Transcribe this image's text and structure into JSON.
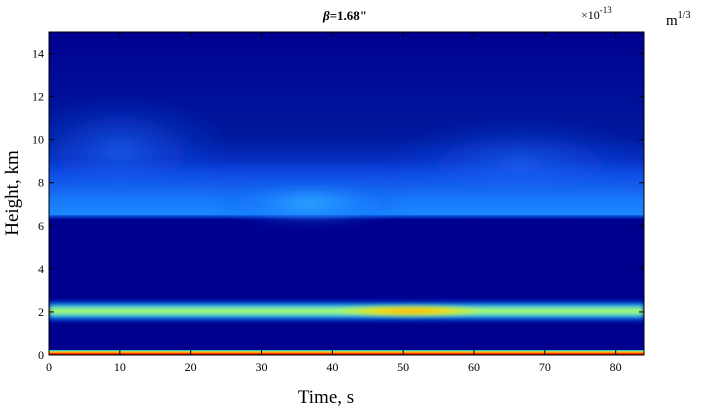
{
  "chart_data": {
    "type": "heatmap",
    "title": "β=1.68\"",
    "title_parts": {
      "symbol": "β",
      "rest": "=1.68\""
    },
    "xlabel": "Time, s",
    "ylabel": "Height, km",
    "xlim": [
      0,
      84
    ],
    "ylim": [
      0,
      15
    ],
    "x_ticks": [
      0,
      10,
      20,
      30,
      40,
      50,
      60,
      70,
      80
    ],
    "y_ticks": [
      0,
      2,
      4,
      6,
      8,
      10,
      12,
      14
    ],
    "colorbar_exponent": {
      "base": "×10",
      "power": "-13"
    },
    "units": {
      "base": "m",
      "power": "1/3"
    },
    "colormap": "jet",
    "background_color": "#00008f",
    "features": [
      {
        "height_km": 0.05,
        "level": 1.0,
        "description": "surface layer"
      },
      {
        "height_km": 2.0,
        "level": 0.55,
        "peak_time_s": 52,
        "peak_level": 0.72
      },
      {
        "height_km": 6.3,
        "level": 0.35
      },
      {
        "height_km_range": [
          7,
          11
        ],
        "level": 0.28,
        "peak_time_s": 36
      }
    ]
  }
}
